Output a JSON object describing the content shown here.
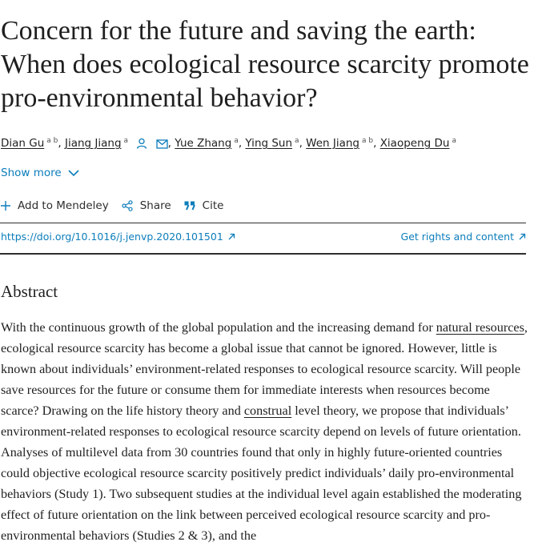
{
  "article": {
    "title": "Concern for the future and saving the earth: When does ecological resource scarcity promote pro-environmental behavior?"
  },
  "authors": [
    {
      "name": "Dian Gu",
      "sup": "a b"
    },
    {
      "name": "Jiang Jiang",
      "sup": "a"
    },
    {
      "name": "Yue Zhang",
      "sup": "a"
    },
    {
      "name": "Ying Sun",
      "sup": "a"
    },
    {
      "name": "Wen Jiang",
      "sup": "a b"
    },
    {
      "name": "Xiaopeng Du",
      "sup": "a"
    }
  ],
  "show_more": {
    "label": "Show more"
  },
  "actions": {
    "mendeley": "Add to Mendeley",
    "share": "Share",
    "cite": "Cite"
  },
  "doi": {
    "text": "https://doi.org/10.1016/j.jenvp.2020.101501"
  },
  "rights": {
    "text": "Get rights and content"
  },
  "abstract": {
    "heading": "Abstract",
    "seg1": "With the continuous growth of the global population and the increasing demand for ",
    "link1": "natural resources",
    "seg2": ", ecological resource scarcity has become a global issue that cannot be ignored. However, little is known about individuals’ environment-related responses to ecological resource scarcity. Will people save resources for the future or consume them for immediate interests when resources become scarce? Drawing on the life history theory and ",
    "link2": "construal",
    "seg3": " level theory, we propose that individuals’ environment-related responses to ecological resource scarcity depend on levels of future orientation. Analyses of multilevel data from 30 countries found that only in highly future-oriented countries could objective ecological resource scarcity positively predict individuals’ daily pro-environmental behaviors (Study 1). Two subsequent studies at the individual level again established the moderating effect of future orientation on the link between perceived ecological resource scarcity and pro-environmental behaviors (Studies 2 & 3), and the"
  },
  "colors": {
    "link_blue": "#0c7dbb",
    "text": "#1f1f1f",
    "rule": "#2e2e2e"
  }
}
